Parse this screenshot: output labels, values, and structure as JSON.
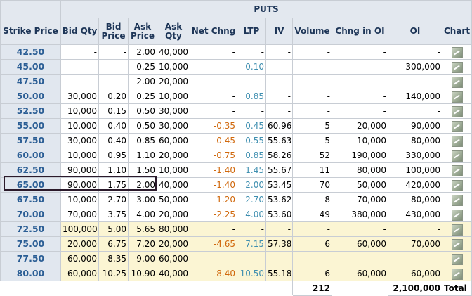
{
  "section_title": "PUTS",
  "columns": {
    "strike": "Strike Price",
    "bid_qty": "Bid Qty",
    "bid_price": "Bid Price",
    "ask_price": "Ask Price",
    "ask_qty": "Ask Qty",
    "net_chng": "Net Chng",
    "ltp": "LTP",
    "iv": "IV",
    "volume": "Volume",
    "chng_oi": "Chng in OI",
    "oi": "OI",
    "chart": "Chart"
  },
  "rows": [
    {
      "strike": "42.50",
      "bid_qty": "-",
      "bid_price": "-",
      "ask_price": "2.00",
      "ask_qty": "40,000",
      "net_chng": "-",
      "ltp": "-",
      "iv": "-",
      "volume": "-",
      "chng_oi": "-",
      "oi": "-",
      "zone": "itm"
    },
    {
      "strike": "45.00",
      "bid_qty": "-",
      "bid_price": "-",
      "ask_price": "0.25",
      "ask_qty": "10,000",
      "net_chng": "-",
      "ltp": "0.10",
      "iv": "-",
      "volume": "-",
      "chng_oi": "-",
      "oi": "300,000",
      "zone": "itm"
    },
    {
      "strike": "47.50",
      "bid_qty": "-",
      "bid_price": "-",
      "ask_price": "2.00",
      "ask_qty": "20,000",
      "net_chng": "-",
      "ltp": "-",
      "iv": "-",
      "volume": "-",
      "chng_oi": "-",
      "oi": "-",
      "zone": "itm"
    },
    {
      "strike": "50.00",
      "bid_qty": "30,000",
      "bid_price": "0.20",
      "ask_price": "0.25",
      "ask_qty": "10,000",
      "net_chng": "-",
      "ltp": "0.85",
      "iv": "-",
      "volume": "-",
      "chng_oi": "-",
      "oi": "140,000",
      "zone": "itm"
    },
    {
      "strike": "52.50",
      "bid_qty": "10,000",
      "bid_price": "0.15",
      "ask_price": "0.50",
      "ask_qty": "30,000",
      "net_chng": "-",
      "ltp": "-",
      "iv": "-",
      "volume": "-",
      "chng_oi": "-",
      "oi": "-",
      "zone": "itm"
    },
    {
      "strike": "55.00",
      "bid_qty": "10,000",
      "bid_price": "0.40",
      "ask_price": "0.50",
      "ask_qty": "30,000",
      "net_chng": "-0.35",
      "ltp": "0.45",
      "iv": "60.96",
      "volume": "5",
      "chng_oi": "20,000",
      "oi": "90,000",
      "zone": "itm"
    },
    {
      "strike": "57.50",
      "bid_qty": "30,000",
      "bid_price": "0.40",
      "ask_price": "0.85",
      "ask_qty": "60,000",
      "net_chng": "-0.45",
      "ltp": "0.55",
      "iv": "55.63",
      "volume": "5",
      "chng_oi": "-10,000",
      "oi": "80,000",
      "zone": "itm"
    },
    {
      "strike": "60.00",
      "bid_qty": "10,000",
      "bid_price": "0.95",
      "ask_price": "1.10",
      "ask_qty": "20,000",
      "net_chng": "-0.75",
      "ltp": "0.85",
      "iv": "58.26",
      "volume": "52",
      "chng_oi": "190,000",
      "oi": "330,000",
      "zone": "itm"
    },
    {
      "strike": "62.50",
      "bid_qty": "90,000",
      "bid_price": "1.10",
      "ask_price": "1.50",
      "ask_qty": "10,000",
      "net_chng": "-1.40",
      "ltp": "1.45",
      "iv": "55.67",
      "volume": "11",
      "chng_oi": "80,000",
      "oi": "100,000",
      "zone": "itm"
    },
    {
      "strike": "65.00",
      "bid_qty": "90,000",
      "bid_price": "1.75",
      "ask_price": "2.00",
      "ask_qty": "40,000",
      "net_chng": "-1.40",
      "ltp": "2.00",
      "iv": "53.45",
      "volume": "70",
      "chng_oi": "50,000",
      "oi": "420,000",
      "zone": "itm"
    },
    {
      "strike": "67.50",
      "bid_qty": "10,000",
      "bid_price": "2.70",
      "ask_price": "3.00",
      "ask_qty": "50,000",
      "net_chng": "-1.20",
      "ltp": "2.70",
      "iv": "53.62",
      "volume": "8",
      "chng_oi": "70,000",
      "oi": "80,000",
      "zone": "itm"
    },
    {
      "strike": "70.00",
      "bid_qty": "70,000",
      "bid_price": "3.75",
      "ask_price": "4.00",
      "ask_qty": "20,000",
      "net_chng": "-2.25",
      "ltp": "4.00",
      "iv": "53.60",
      "volume": "49",
      "chng_oi": "380,000",
      "oi": "430,000",
      "zone": "itm"
    },
    {
      "strike": "72.50",
      "bid_qty": "100,000",
      "bid_price": "5.00",
      "ask_price": "5.65",
      "ask_qty": "80,000",
      "net_chng": "-",
      "ltp": "-",
      "iv": "-",
      "volume": "-",
      "chng_oi": "-",
      "oi": "-",
      "zone": "otm"
    },
    {
      "strike": "75.00",
      "bid_qty": "20,000",
      "bid_price": "6.75",
      "ask_price": "7.20",
      "ask_qty": "20,000",
      "net_chng": "-4.65",
      "ltp": "7.15",
      "iv": "57.38",
      "volume": "6",
      "chng_oi": "60,000",
      "oi": "70,000",
      "zone": "otm"
    },
    {
      "strike": "77.50",
      "bid_qty": "60,000",
      "bid_price": "8.35",
      "ask_price": "9.00",
      "ask_qty": "60,000",
      "net_chng": "-",
      "ltp": "-",
      "iv": "-",
      "volume": "-",
      "chng_oi": "-",
      "oi": "-",
      "zone": "otm"
    },
    {
      "strike": "80.00",
      "bid_qty": "60,000",
      "bid_price": "10.25",
      "ask_price": "10.90",
      "ask_qty": "40,000",
      "net_chng": "-8.40",
      "ltp": "10.50",
      "iv": "55.18",
      "volume": "6",
      "chng_oi": "60,000",
      "oi": "60,000",
      "zone": "otm"
    }
  ],
  "totals": {
    "volume": "212",
    "oi": "2,100,000",
    "label": "Total"
  },
  "icons": {
    "chart": "chart-icon"
  },
  "colors": {
    "strike_text": "#2a5d94",
    "net_change_negative": "#d0680c",
    "ltp_text": "#3f8fb0",
    "otm_row_background": "#fbf5d3",
    "header_background": "#e3e8ef"
  }
}
